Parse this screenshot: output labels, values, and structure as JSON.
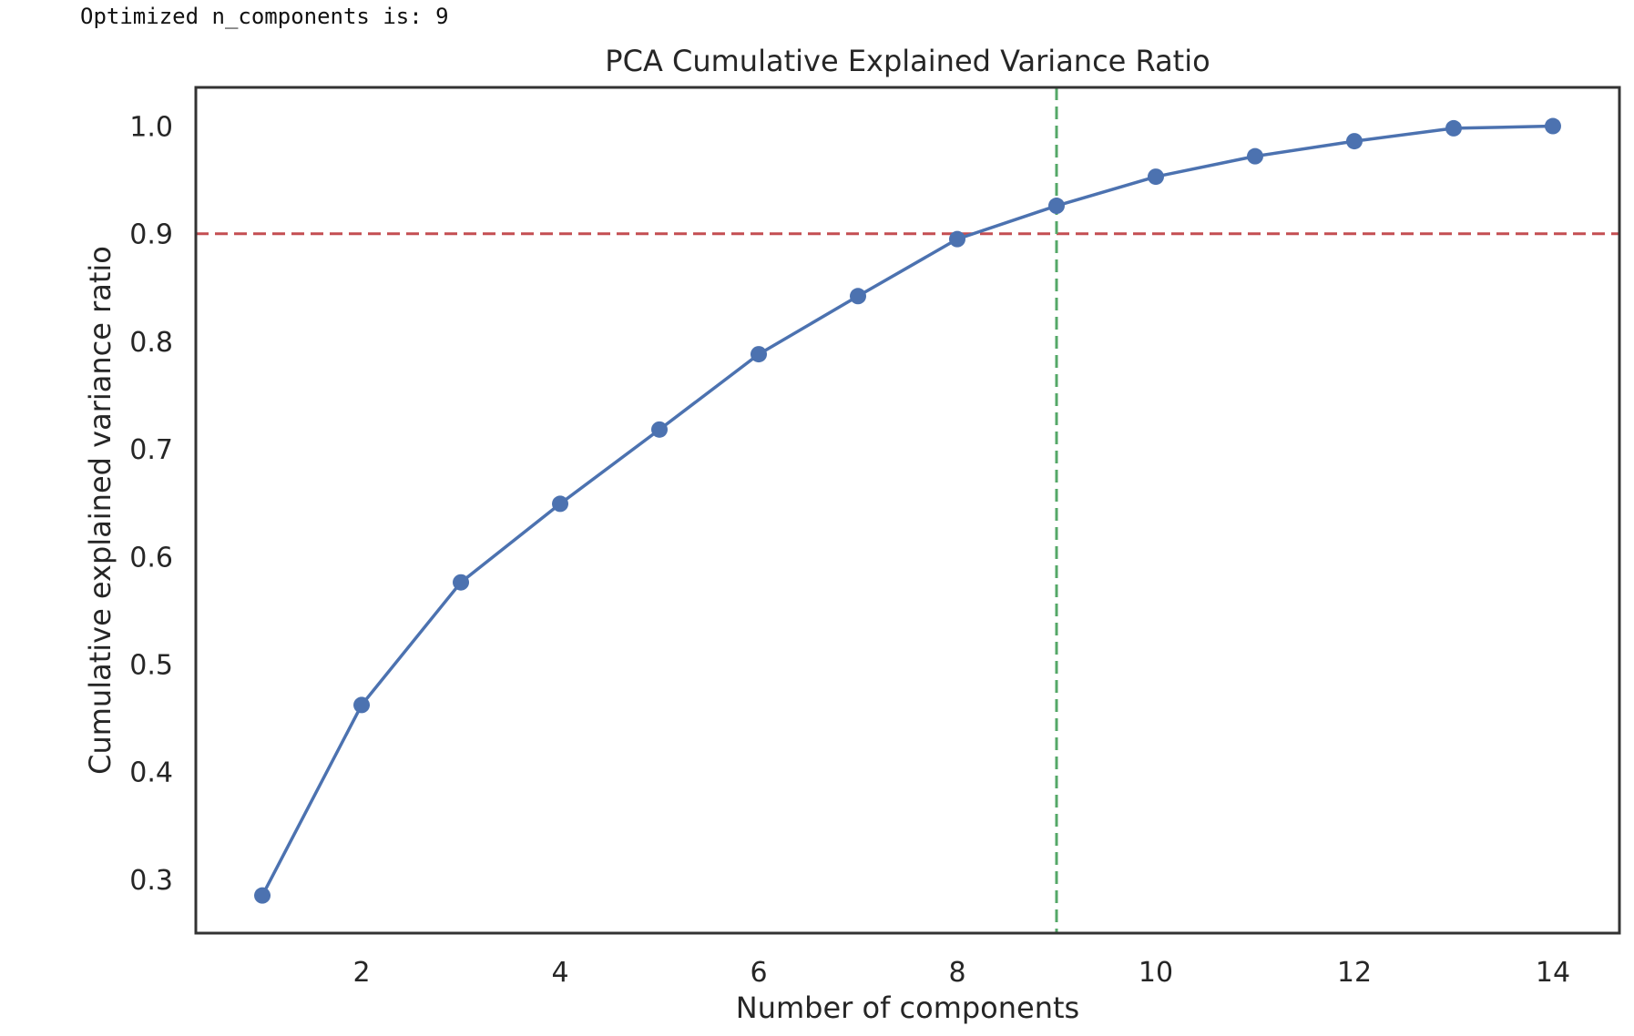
{
  "output": {
    "text": "Optimized n_components is: 9"
  },
  "chart_data": {
    "type": "line",
    "title": "PCA Cumulative Explained Variance Ratio",
    "xlabel": "Number of components",
    "ylabel": "Cumulative explained variance ratio",
    "x": [
      1,
      2,
      3,
      4,
      5,
      6,
      7,
      8,
      9,
      10,
      11,
      12,
      13,
      14
    ],
    "series": [
      {
        "values": [
          0.285,
          0.462,
          0.576,
          0.649,
          0.718,
          0.788,
          0.842,
          0.895,
          0.926,
          0.953,
          0.972,
          0.986,
          0.998,
          1.0
        ],
        "color": "#4c72b0",
        "marker": "circle"
      }
    ],
    "xlim": [
      0.33,
      14.67
    ],
    "ylim": [
      0.25,
      1.036
    ],
    "xticks": [
      2,
      4,
      6,
      8,
      10,
      12,
      14
    ],
    "xtick_labels": [
      "2",
      "4",
      "6",
      "8",
      "10",
      "12",
      "14"
    ],
    "yticks": [
      0.3,
      0.4,
      0.5,
      0.6,
      0.7,
      0.8,
      0.9,
      1.0
    ],
    "ytick_labels": [
      "0.3",
      "0.4",
      "0.5",
      "0.6",
      "0.7",
      "0.8",
      "0.9",
      "1.0"
    ],
    "reference_lines": [
      {
        "orientation": "horizontal",
        "value": 0.9,
        "color": "#c44e52",
        "style": "dashed"
      },
      {
        "orientation": "vertical",
        "value": 9,
        "color": "#55a868",
        "style": "dashed"
      }
    ],
    "grid": false,
    "legend": "none"
  }
}
